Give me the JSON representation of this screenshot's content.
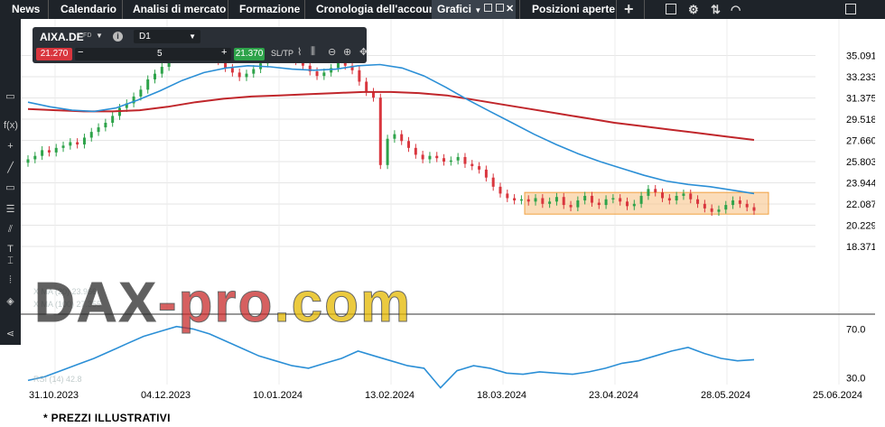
{
  "topbar": {
    "tabs": [
      {
        "label": "News"
      },
      {
        "label": "Calendario"
      },
      {
        "label": "Analisi di mercato"
      },
      {
        "label": "Formazione"
      },
      {
        "label": "Cronologia dell'account"
      },
      {
        "label": "Grafici",
        "active": true
      },
      {
        "label": "Posizioni aperte"
      }
    ],
    "icons": [
      "caret-down-icon",
      "popout-icon",
      "dock-icon",
      "close-icon",
      "plus-icon",
      "fullscreen-icon",
      "settings-icon",
      "wifi-icon",
      "window-icon"
    ]
  },
  "instrument": {
    "symbol": "AIXA.DE",
    "type": "CFD",
    "timeframe": "D1",
    "sell_price": "21.270",
    "buy_price": "21.370",
    "quantity": "5",
    "sltp_label": "SL/TP"
  },
  "leftbar": {
    "tools": [
      "screen-icon",
      "fx-icon",
      "crosshair-icon",
      "line-tool-icon",
      "rectangle-tool-icon",
      "fib-tool-icon",
      "text-tool-icon",
      "measure-icon",
      "sliders-icon",
      "layers-icon",
      "share-icon"
    ]
  },
  "colors": {
    "bull": "#2ea34a",
    "bear": "#d9363e",
    "ma_fast": "#2b8fd6",
    "ma_slow": "#c0262b",
    "zone_fill": "#f9c58a",
    "zone_stroke": "#f0a040",
    "rsi": "#2b8fd6"
  },
  "watermark": "DAX-pro.com",
  "legend_faint": {
    "line1": "X MA (20) 23.966",
    "line2": "X MA (100) 27.355",
    "rsi": "RSI (14) 42.8"
  },
  "footer": "* PREZZI ILLUSTRATIVI",
  "chart_data": {
    "type": "candlestick",
    "price_axis": {
      "ticks": [
        "35.091",
        "33.233",
        "31.375",
        "29.518",
        "27.660",
        "25.803",
        "23.944",
        "22.087",
        "20.229",
        "18.371"
      ],
      "range": [
        18.371,
        36.0
      ]
    },
    "x_axis": {
      "ticks": [
        "31.10.2023",
        "04.12.2023",
        "10.01.2024",
        "13.02.2024",
        "18.03.2024",
        "23.04.2024",
        "28.05.2024",
        "25.06.2024"
      ]
    },
    "rsi_axis": {
      "ticks": [
        "70.0",
        "30.0"
      ],
      "range": [
        20,
        80
      ]
    },
    "zone": {
      "low": 21.2,
      "high": 23.1,
      "from": "26.03.2024",
      "to": "10.06.2024"
    },
    "ohlc_close": [
      26.0,
      26.3,
      26.8,
      26.6,
      27.0,
      27.2,
      27.5,
      27.3,
      27.9,
      28.4,
      28.8,
      29.2,
      29.8,
      30.5,
      30.9,
      31.5,
      32.1,
      33.0,
      33.5,
      34.1,
      34.8,
      35.3,
      35.6,
      35.9,
      36.0,
      35.8,
      35.2,
      34.6,
      34.0,
      33.6,
      33.2,
      33.5,
      33.9,
      34.4,
      35.1,
      35.4,
      35.2,
      34.9,
      34.6,
      34.2,
      33.7,
      33.3,
      33.6,
      34.0,
      34.5,
      34.2,
      33.8,
      32.8,
      31.9,
      31.4,
      25.5,
      27.8,
      28.2,
      27.6,
      27.0,
      26.4,
      26.0,
      26.3,
      26.1,
      25.8,
      25.9,
      26.2,
      25.6,
      25.4,
      25.1,
      24.4,
      23.6,
      23.0,
      22.6,
      22.4,
      22.5,
      22.3,
      22.6,
      22.1,
      22.3,
      22.7,
      22.0,
      21.8,
      22.4,
      22.8,
      22.2,
      22.0,
      22.5,
      22.6,
      22.3,
      21.9,
      22.1,
      22.8,
      23.4,
      23.1,
      22.6,
      22.4,
      22.8,
      23.0,
      22.5,
      22.1,
      21.7,
      21.4,
      21.6,
      22.0,
      22.4,
      22.1,
      21.8,
      21.5
    ],
    "ma_fast": [
      31.0,
      30.6,
      30.3,
      30.2,
      30.5,
      31.2,
      32.0,
      32.9,
      33.6,
      34.0,
      34.2,
      34.1,
      33.9,
      33.8,
      33.9,
      34.2,
      34.3,
      34.0,
      33.3,
      32.3,
      31.2,
      30.2,
      29.2,
      28.2,
      27.3,
      26.5,
      25.8,
      25.2,
      24.6,
      24.1,
      23.8,
      23.6,
      23.3,
      23.0
    ],
    "ma_slow": [
      30.4,
      30.3,
      30.2,
      30.2,
      30.3,
      30.6,
      31.0,
      31.3,
      31.5,
      31.6,
      31.7,
      31.8,
      31.9,
      31.9,
      31.8,
      31.6,
      31.2,
      30.8,
      30.4,
      30.0,
      29.6,
      29.2,
      28.9,
      28.6,
      28.3,
      28.0,
      27.7
    ],
    "rsi": [
      28,
      31,
      36,
      41,
      46,
      52,
      58,
      64,
      68,
      72,
      70,
      66,
      60,
      54,
      48,
      44,
      40,
      38,
      42,
      46,
      52,
      48,
      44,
      40,
      38,
      22,
      36,
      40,
      38,
      34,
      33,
      35,
      34,
      33,
      35,
      38,
      42,
      44,
      48,
      52,
      55,
      50,
      46,
      44,
      45
    ]
  }
}
